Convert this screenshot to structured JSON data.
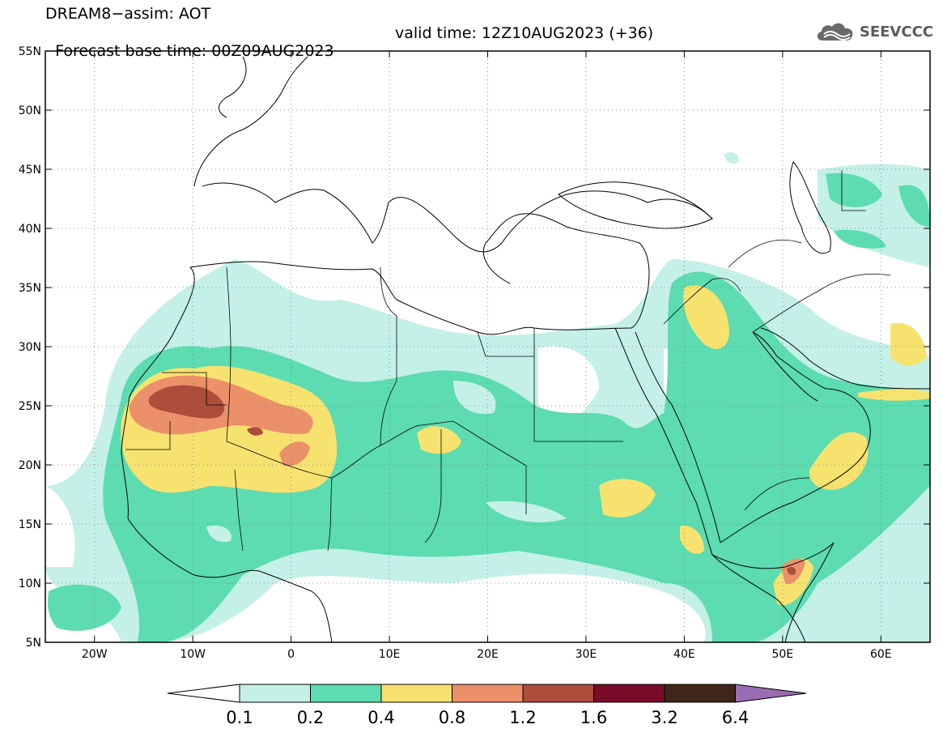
{
  "title": {
    "line1": "DREAM8−assim: AOT",
    "base_time": "Forecast base time: 00Z09AUG2023",
    "valid_time": "valid time: 12Z10AUG2023 (+36)"
  },
  "logo": {
    "text": "SEEVCCC",
    "icon": "cloud-icon"
  },
  "map": {
    "lon_range": [
      -25,
      65
    ],
    "lat_range": [
      5,
      55
    ],
    "lon_ticks": [
      {
        "value": -20,
        "label": "20W"
      },
      {
        "value": -10,
        "label": "10W"
      },
      {
        "value": 0,
        "label": "0"
      },
      {
        "value": 10,
        "label": "10E"
      },
      {
        "value": 20,
        "label": "20E"
      },
      {
        "value": 30,
        "label": "30E"
      },
      {
        "value": 40,
        "label": "40E"
      },
      {
        "value": 50,
        "label": "50E"
      },
      {
        "value": 60,
        "label": "60E"
      }
    ],
    "lat_ticks": [
      {
        "value": 55,
        "label": "55N"
      },
      {
        "value": 50,
        "label": "50N"
      },
      {
        "value": 45,
        "label": "45N"
      },
      {
        "value": 40,
        "label": "40N"
      },
      {
        "value": 35,
        "label": "35N"
      },
      {
        "value": 30,
        "label": "30N"
      },
      {
        "value": 25,
        "label": "25N"
      },
      {
        "value": 20,
        "label": "20N"
      },
      {
        "value": 15,
        "label": "15N"
      },
      {
        "value": 10,
        "label": "10N"
      },
      {
        "value": 5,
        "label": "5N"
      }
    ]
  },
  "colorbar": {
    "bins": [
      {
        "color": "#c4f0e8"
      },
      {
        "color": "#5cdcb0"
      },
      {
        "color": "#f7e270"
      },
      {
        "color": "#ec906a"
      },
      {
        "color": "#ad4d3c"
      },
      {
        "color": "#7a0c2a"
      },
      {
        "color": "#3e2718"
      }
    ],
    "under_color": "#ffffff",
    "over_color": "#9a6cb4",
    "labels": [
      "0.1",
      "0.2",
      "0.4",
      "0.8",
      "1.2",
      "1.6",
      "3.2",
      "6.4"
    ]
  }
}
